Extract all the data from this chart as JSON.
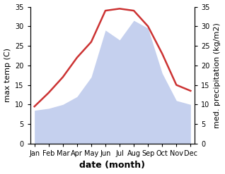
{
  "months": [
    "Jan",
    "Feb",
    "Mar",
    "Apr",
    "May",
    "Jun",
    "Jul",
    "Aug",
    "Sep",
    "Oct",
    "Nov",
    "Dec"
  ],
  "temperature": [
    9.5,
    13.0,
    17.0,
    22.0,
    26.0,
    34.0,
    34.5,
    34.0,
    30.0,
    23.0,
    15.0,
    13.5
  ],
  "precipitation": [
    8.5,
    9.0,
    10.0,
    12.0,
    17.0,
    29.0,
    26.5,
    31.5,
    29.5,
    18.0,
    11.0,
    10.0
  ],
  "temp_color": "#cc3333",
  "precip_color": "#c5d0ee",
  "background_color": "#ffffff",
  "ylim": [
    0,
    35
  ],
  "ylabel_left": "max temp (C)",
  "ylabel_right": "med. precipitation (kg/m2)",
  "xlabel": "date (month)",
  "temp_linewidth": 1.8,
  "tick_fontsize": 7.0,
  "label_fontsize": 8.0,
  "xlabel_fontsize": 9.0,
  "yticks": [
    0,
    5,
    10,
    15,
    20,
    25,
    30,
    35
  ]
}
